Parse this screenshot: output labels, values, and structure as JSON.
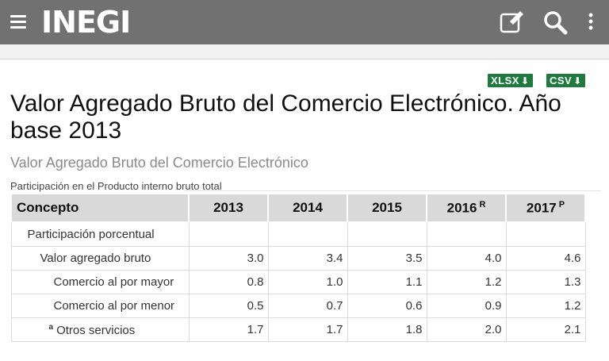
{
  "header": {
    "logo": "INEGI",
    "bg_color": "#717171"
  },
  "downloads": {
    "xlsx_label": "XLSX",
    "csv_label": "CSV",
    "arrow": "⬇",
    "color": "#1f7a3f"
  },
  "page": {
    "title": "Valor Agregado Bruto del Comercio Electrónico. Año base 2013",
    "subtitle": "Valor Agregado Bruto del Comercio Electrónico",
    "note": "Participación en el Producto interno bruto total"
  },
  "table": {
    "concept_header": "Concepto",
    "years": [
      {
        "label": "2013",
        "mark": ""
      },
      {
        "label": "2014",
        "mark": ""
      },
      {
        "label": "2015",
        "mark": ""
      },
      {
        "label": "2016",
        "mark": "R"
      },
      {
        "label": "2017",
        "mark": "P"
      }
    ],
    "rows": [
      {
        "label": "Participación porcentual",
        "footnote": "",
        "values": [
          "",
          "",
          "",
          "",
          ""
        ]
      },
      {
        "label": "Valor agregado bruto",
        "footnote": "",
        "values": [
          "3.0",
          "3.4",
          "3.5",
          "4.0",
          "4.6"
        ]
      },
      {
        "label": "Comercio al por mayor",
        "footnote": "",
        "values": [
          "0.8",
          "1.0",
          "1.1",
          "1.2",
          "1.3"
        ]
      },
      {
        "label": "Comercio al por menor",
        "footnote": "",
        "values": [
          "0.5",
          "0.7",
          "0.6",
          "0.9",
          "1.2"
        ]
      },
      {
        "label": "Otros servicios",
        "footnote": "a",
        "values": [
          "1.7",
          "1.7",
          "1.8",
          "2.0",
          "2.1"
        ]
      }
    ]
  }
}
